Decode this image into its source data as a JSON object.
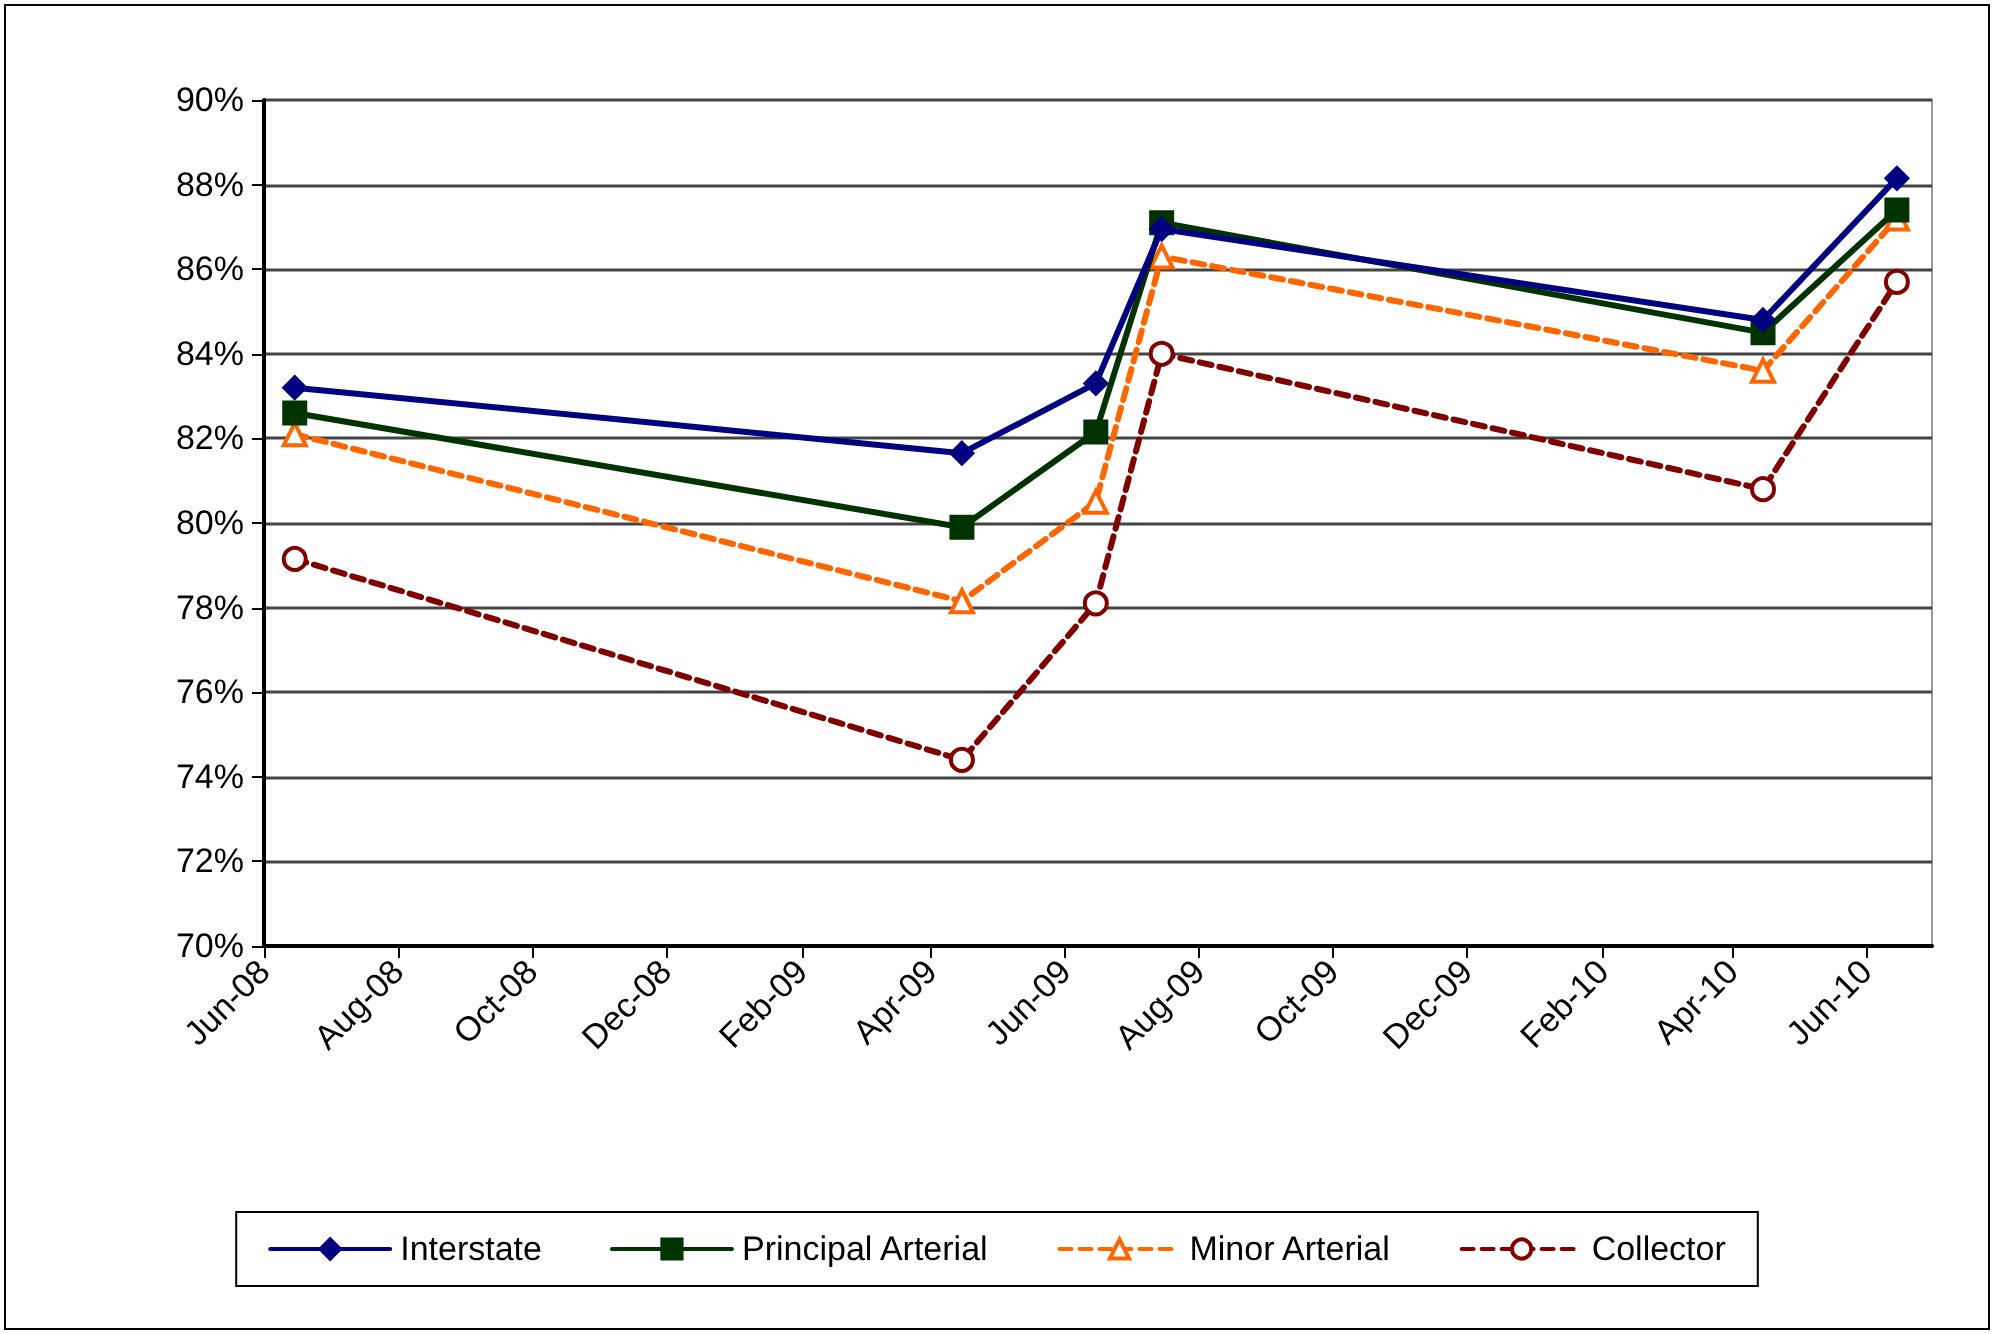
{
  "chart_data": {
    "type": "line",
    "x": [
      "2008-06-15",
      "2009-04-15",
      "2009-06-15",
      "2009-07-15",
      "2010-04-15",
      "2010-06-15"
    ],
    "series": [
      {
        "name": "Interstate",
        "color": "#000080",
        "marker": "diamond",
        "line_style": "solid",
        "values": [
          83.2,
          81.65,
          83.3,
          86.95,
          84.8,
          88.15
        ]
      },
      {
        "name": "Principal Arterial",
        "color": "#003300",
        "marker": "square",
        "line_style": "solid",
        "values": [
          82.6,
          79.9,
          82.15,
          87.1,
          84.5,
          87.4
        ]
      },
      {
        "name": "Minor Arterial",
        "color": "#ff6600",
        "marker": "triangle",
        "line_style": "dashed",
        "values": [
          82.1,
          78.15,
          80.5,
          86.3,
          83.6,
          87.2
        ]
      },
      {
        "name": "Collector",
        "color": "#800000",
        "marker": "circle",
        "line_style": "dashed",
        "values": [
          79.15,
          74.4,
          78.1,
          84.0,
          80.8,
          85.7
        ]
      }
    ],
    "xlim": [
      "2008-06-01",
      "2010-07-01"
    ],
    "xticks": [
      {
        "value": "2008-06-01",
        "label": "Jun-08"
      },
      {
        "value": "2008-08-01",
        "label": "Aug-08"
      },
      {
        "value": "2008-10-01",
        "label": "Oct-08"
      },
      {
        "value": "2008-12-01",
        "label": "Dec-08"
      },
      {
        "value": "2009-02-01",
        "label": "Feb-09"
      },
      {
        "value": "2009-04-01",
        "label": "Apr-09"
      },
      {
        "value": "2009-06-01",
        "label": "Jun-09"
      },
      {
        "value": "2009-08-01",
        "label": "Aug-09"
      },
      {
        "value": "2009-10-01",
        "label": "Oct-09"
      },
      {
        "value": "2009-12-01",
        "label": "Dec-09"
      },
      {
        "value": "2010-02-01",
        "label": "Feb-10"
      },
      {
        "value": "2010-04-01",
        "label": "Apr-10"
      },
      {
        "value": "2010-06-01",
        "label": "Jun-10"
      }
    ],
    "ylim": [
      70,
      90
    ],
    "yticks": [
      {
        "value": 70,
        "label": "70%"
      },
      {
        "value": 72,
        "label": "72%"
      },
      {
        "value": 74,
        "label": "74%"
      },
      {
        "value": 76,
        "label": "76%"
      },
      {
        "value": 78,
        "label": "78%"
      },
      {
        "value": 80,
        "label": "80%"
      },
      {
        "value": 82,
        "label": "82%"
      },
      {
        "value": 84,
        "label": "84%"
      },
      {
        "value": 86,
        "label": "86%"
      },
      {
        "value": 88,
        "label": "88%"
      },
      {
        "value": 90,
        "label": "90%"
      }
    ],
    "grid": "y",
    "legend": "bottom"
  }
}
